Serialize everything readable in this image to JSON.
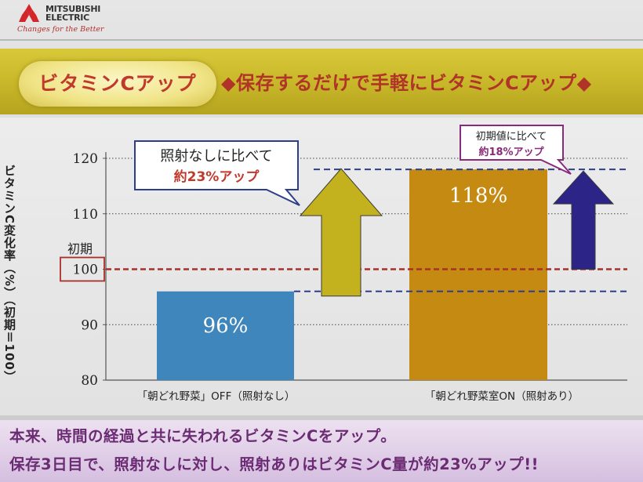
{
  "header": {
    "brand_lines": "MITSUBISHI\nELECTRIC",
    "tagline": "Changes for the Better"
  },
  "banner": {
    "badge": "ビタミンCアップ",
    "title": "◆保存するだけで手軽にビタミンCアップ◆"
  },
  "callouts": {
    "left_line1": "照射なしに比べて",
    "left_line2": "約23%アップ",
    "right_line1": "初期値に比べて",
    "right_line2": "約18%アップ"
  },
  "colors": {
    "bar_off": "#3f86bd",
    "bar_on": "#c58a12",
    "arrow_left": "#c3b21e",
    "arrow_right": "#2d2488",
    "accent_red": "#b03428",
    "footer_text": "#6b2c73"
  },
  "chart_data": {
    "type": "bar",
    "categories": [
      "「朝どれ野菜」OFF（照射なし）",
      "「朝どれ野菜室ON（照射あり）"
    ],
    "values": [
      96,
      118
    ],
    "data_labels": [
      "96%",
      "118%"
    ],
    "ylabel": "ビタミンC変化率（%）（初期＝100）",
    "ylim": [
      80,
      120
    ],
    "yticks": [
      80,
      90,
      100,
      110,
      120
    ],
    "initial_label": "初期",
    "initial_value": 100,
    "grid": true
  },
  "footer": {
    "line1": "本来、時間の経過と共に失われるビタミンCをアップ。",
    "line2": "保存3日目で、照射なしに対し、照射ありはビタミンC量が約23%アップ!!"
  }
}
